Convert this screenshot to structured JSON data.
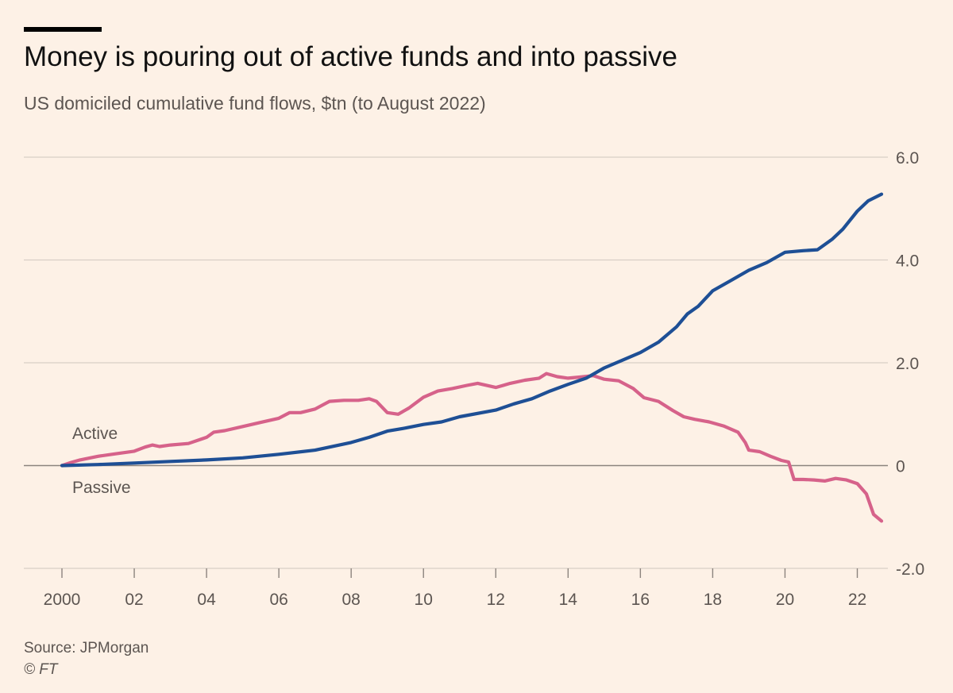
{
  "header": {
    "title": "Money is pouring out of active funds and into passive",
    "subtitle": "US domiciled cumulative fund flows, $tn (to August 2022)"
  },
  "footer": {
    "source": "Source: JPMorgan",
    "credit": "© FT"
  },
  "chart_data": {
    "type": "line",
    "title": "Money is pouring out of active funds and into passive",
    "subtitle": "US domiciled cumulative fund flows, $tn (to August 2022)",
    "xlabel": "",
    "ylabel": "",
    "xlim": [
      2000,
      2022.67
    ],
    "ylim": [
      -2,
      6
    ],
    "x_ticks": [
      2000,
      2002,
      2004,
      2006,
      2008,
      2010,
      2012,
      2014,
      2016,
      2018,
      2020,
      2022
    ],
    "x_tick_labels": [
      "2000",
      "02",
      "04",
      "06",
      "08",
      "10",
      "12",
      "14",
      "16",
      "18",
      "20",
      "22"
    ],
    "y_ticks": [
      -2,
      0,
      2,
      4,
      6
    ],
    "y_tick_labels": [
      "-2.0",
      "0",
      "2.0",
      "4.0",
      "6.0"
    ],
    "y_axis_side": "right",
    "grid": "horizontal",
    "legend": "inline labels near start of lines",
    "colors": {
      "active": "#d6628a",
      "passive": "#1e4f95",
      "grid": "#d9cfc6",
      "text": "#5c5551"
    },
    "series": [
      {
        "name": "Active",
        "key": "active",
        "points": [
          [
            2000,
            0
          ],
          [
            2000.25,
            0.06
          ],
          [
            2000.5,
            0.11
          ],
          [
            2001,
            0.18
          ],
          [
            2001.5,
            0.23
          ],
          [
            2002,
            0.28
          ],
          [
            2002.3,
            0.36
          ],
          [
            2002.5,
            0.4
          ],
          [
            2002.7,
            0.37
          ],
          [
            2003,
            0.4
          ],
          [
            2003.5,
            0.43
          ],
          [
            2004,
            0.55
          ],
          [
            2004.2,
            0.65
          ],
          [
            2004.5,
            0.68
          ],
          [
            2005,
            0.76
          ],
          [
            2005.5,
            0.84
          ],
          [
            2006,
            0.92
          ],
          [
            2006.3,
            1.03
          ],
          [
            2006.6,
            1.03
          ],
          [
            2007,
            1.1
          ],
          [
            2007.4,
            1.25
          ],
          [
            2007.8,
            1.27
          ],
          [
            2008.2,
            1.27
          ],
          [
            2008.5,
            1.3
          ],
          [
            2008.7,
            1.25
          ],
          [
            2009,
            1.03
          ],
          [
            2009.3,
            1.0
          ],
          [
            2009.6,
            1.12
          ],
          [
            2010,
            1.33
          ],
          [
            2010.4,
            1.45
          ],
          [
            2010.8,
            1.5
          ],
          [
            2011.2,
            1.56
          ],
          [
            2011.5,
            1.6
          ],
          [
            2012,
            1.52
          ],
          [
            2012.4,
            1.6
          ],
          [
            2012.8,
            1.66
          ],
          [
            2013.2,
            1.7
          ],
          [
            2013.4,
            1.79
          ],
          [
            2013.7,
            1.73
          ],
          [
            2014,
            1.7
          ],
          [
            2014.3,
            1.72
          ],
          [
            2014.7,
            1.75
          ],
          [
            2015,
            1.68
          ],
          [
            2015.4,
            1.65
          ],
          [
            2015.8,
            1.5
          ],
          [
            2016.1,
            1.32
          ],
          [
            2016.5,
            1.25
          ],
          [
            2016.9,
            1.07
          ],
          [
            2017.2,
            0.95
          ],
          [
            2017.5,
            0.9
          ],
          [
            2017.9,
            0.85
          ],
          [
            2018.3,
            0.77
          ],
          [
            2018.7,
            0.65
          ],
          [
            2018.9,
            0.45
          ],
          [
            2019,
            0.3
          ],
          [
            2019.3,
            0.27
          ],
          [
            2019.6,
            0.18
          ],
          [
            2019.9,
            0.1
          ],
          [
            2020.1,
            0.07
          ],
          [
            2020.25,
            -0.27
          ],
          [
            2020.5,
            -0.27
          ],
          [
            2020.8,
            -0.28
          ],
          [
            2021.1,
            -0.3
          ],
          [
            2021.4,
            -0.25
          ],
          [
            2021.7,
            -0.28
          ],
          [
            2022,
            -0.35
          ],
          [
            2022.25,
            -0.55
          ],
          [
            2022.45,
            -0.95
          ],
          [
            2022.67,
            -1.08
          ]
        ]
      },
      {
        "name": "Passive",
        "key": "passive",
        "points": [
          [
            2000,
            0
          ],
          [
            2001,
            0.02
          ],
          [
            2002,
            0.05
          ],
          [
            2003,
            0.08
          ],
          [
            2004,
            0.11
          ],
          [
            2005,
            0.15
          ],
          [
            2006,
            0.22
          ],
          [
            2007,
            0.3
          ],
          [
            2008,
            0.45
          ],
          [
            2008.5,
            0.55
          ],
          [
            2009,
            0.67
          ],
          [
            2009.5,
            0.73
          ],
          [
            2010,
            0.8
          ],
          [
            2010.5,
            0.85
          ],
          [
            2011,
            0.95
          ],
          [
            2012,
            1.08
          ],
          [
            2012.5,
            1.2
          ],
          [
            2013,
            1.3
          ],
          [
            2013.5,
            1.45
          ],
          [
            2014,
            1.58
          ],
          [
            2014.5,
            1.7
          ],
          [
            2015,
            1.9
          ],
          [
            2015.5,
            2.05
          ],
          [
            2016,
            2.2
          ],
          [
            2016.5,
            2.4
          ],
          [
            2017,
            2.7
          ],
          [
            2017.3,
            2.95
          ],
          [
            2017.6,
            3.1
          ],
          [
            2018,
            3.4
          ],
          [
            2018.5,
            3.6
          ],
          [
            2019,
            3.8
          ],
          [
            2019.5,
            3.95
          ],
          [
            2020,
            4.15
          ],
          [
            2020.5,
            4.18
          ],
          [
            2020.9,
            4.2
          ],
          [
            2021,
            4.25
          ],
          [
            2021.3,
            4.4
          ],
          [
            2021.6,
            4.6
          ],
          [
            2022,
            4.95
          ],
          [
            2022.3,
            5.15
          ],
          [
            2022.67,
            5.28
          ]
        ]
      }
    ]
  }
}
